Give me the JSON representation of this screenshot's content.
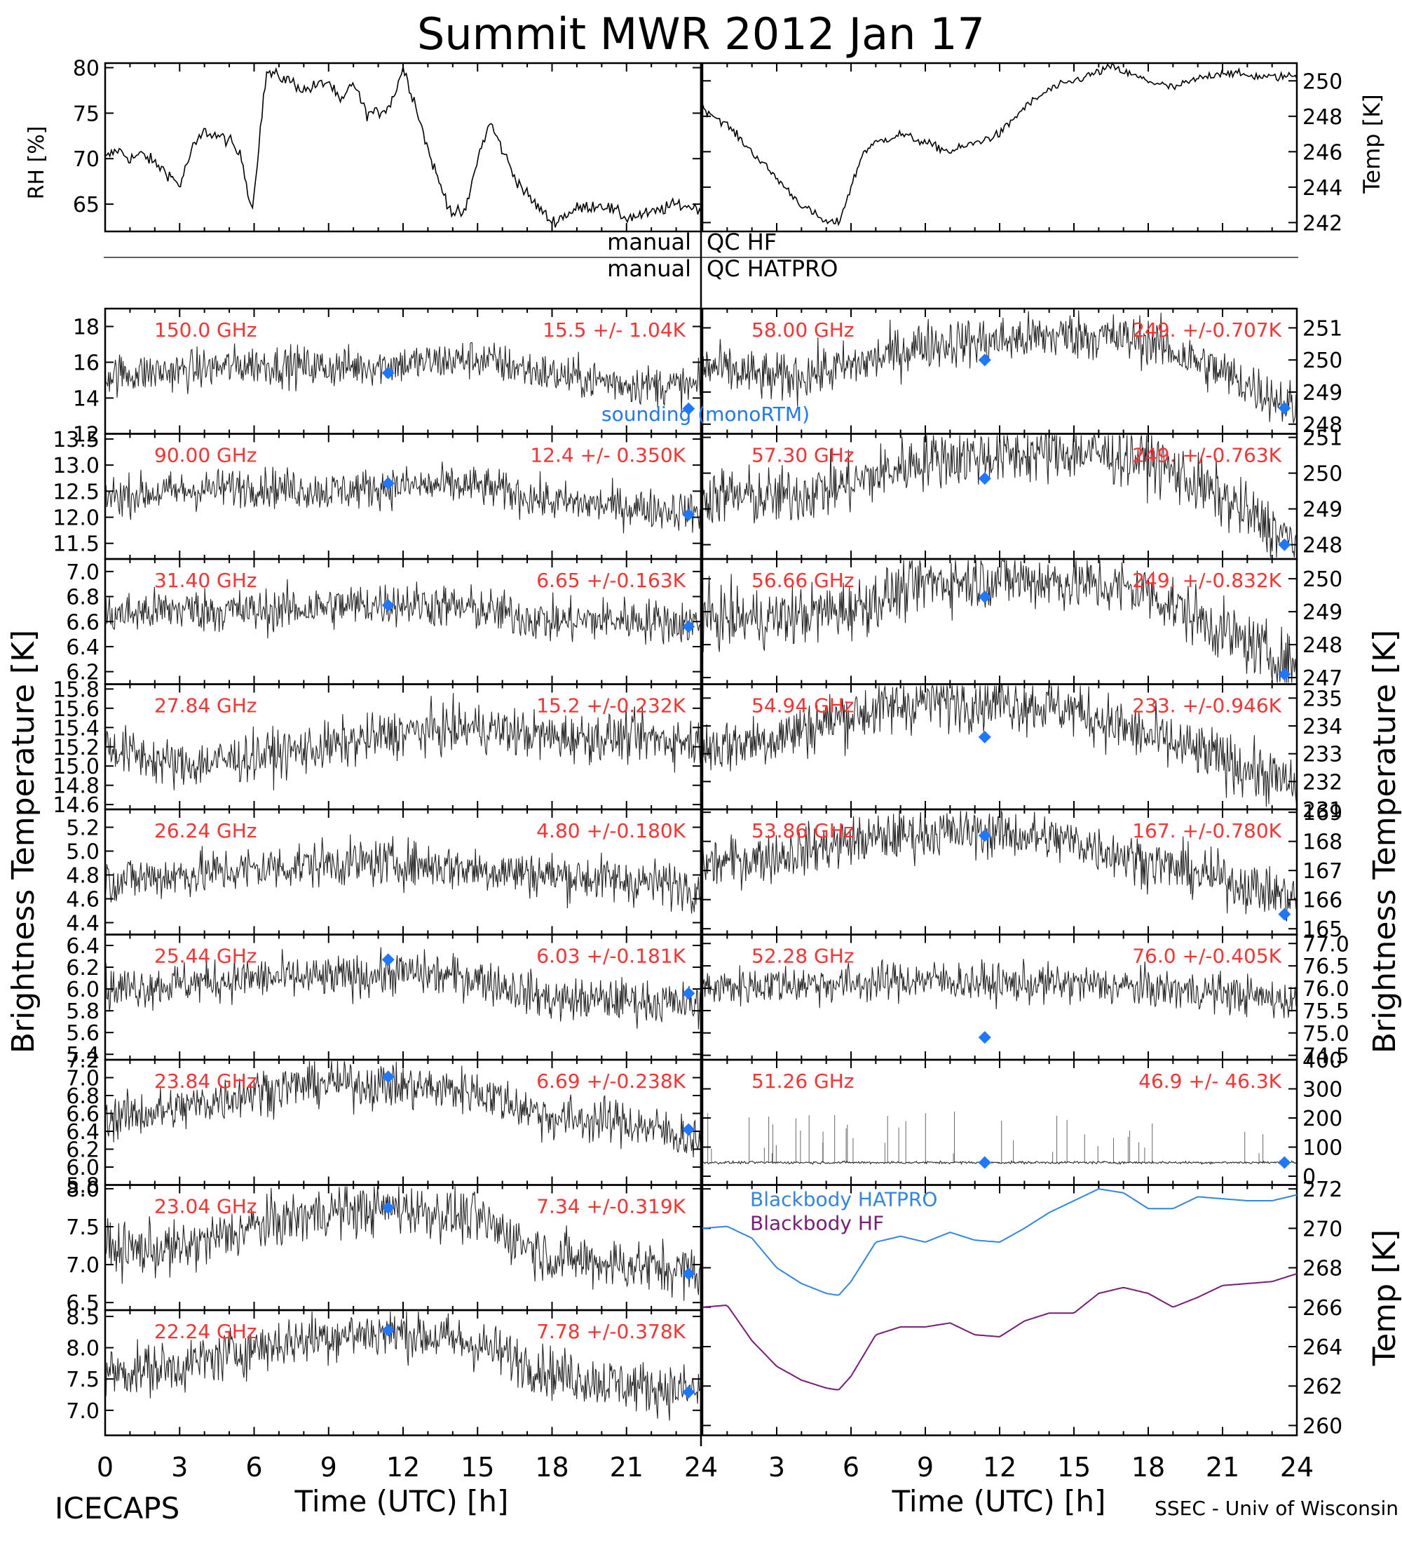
{
  "title": "Summit MWR 2012 Jan 17",
  "footer": {
    "left": "ICECAPS",
    "right": "SSEC - Univ of Wisconsin",
    "xlabel_left": "Time (UTC) [h]",
    "xlabel_right": "Time (UTC) [h]"
  },
  "axis_labels": {
    "rh": "RH [%]",
    "temp_top": "Temp [K]",
    "bt_left": "Brightness Temperature [K]",
    "bt_right": "Brightness Temperature [K]",
    "temp_bottom": "Temp [K]"
  },
  "qc_lines": {
    "hf_left": "manual",
    "hf_right": "QC HF",
    "hatpro_left": "manual",
    "hatpro_right": "QC HATPRO"
  },
  "legends": {
    "sounding": "sounding (monoRTM)",
    "bb_hatpro": "Blackbody HATPRO",
    "bb_hf": "Blackbody HF"
  },
  "colors": {
    "data": "#000000",
    "label": "#ff3030",
    "sounding": "#1e78ff",
    "bb_hatpro": "#2f86e8",
    "bb_hf": "#7a1a7a"
  },
  "chart_data": {
    "type": "line",
    "x_ticks": [
      "0",
      "3",
      "6",
      "9",
      "12",
      "15",
      "18",
      "21",
      "24"
    ],
    "xlim": [
      0,
      24
    ],
    "meteo": {
      "rh": {
        "ylim": [
          62,
          80.5
        ],
        "ticks": [
          "65",
          "70",
          "75",
          "80"
        ],
        "tick_values": [
          65,
          70,
          75,
          80
        ],
        "x": [
          0,
          0.5,
          1,
          1.5,
          2,
          2.5,
          3,
          3.5,
          4,
          4.5,
          5,
          5.5,
          5.9,
          6,
          6.2,
          6.5,
          7,
          7.5,
          8,
          8.5,
          9,
          9.5,
          10,
          10.5,
          11,
          11.5,
          12,
          12.5,
          13,
          13.5,
          14,
          14.5,
          15,
          15.5,
          16,
          16.5,
          17,
          17.5,
          18,
          19,
          20,
          21,
          22,
          23,
          24
        ],
        "y": [
          70,
          71,
          70,
          70.5,
          69.5,
          68.5,
          67,
          71,
          73,
          72.5,
          72,
          70,
          64.5,
          66,
          72,
          79.5,
          79,
          78.5,
          77.5,
          78,
          78.5,
          76,
          78.5,
          75,
          75,
          76,
          80,
          76,
          71,
          67,
          64,
          64,
          70,
          74,
          71,
          68,
          66,
          64.5,
          63,
          64.5,
          65,
          63.5,
          64,
          65,
          64.5
        ]
      },
      "temp": {
        "ylim": [
          241.5,
          251
        ],
        "ticks": [
          "242",
          "244",
          "246",
          "248",
          "250"
        ],
        "tick_values": [
          242,
          244,
          246,
          248,
          250
        ],
        "x": [
          0,
          0.5,
          1,
          2,
          3,
          4,
          4.5,
          5,
          5.5,
          6,
          6.5,
          7,
          8,
          9,
          10,
          11,
          12,
          13,
          14,
          15,
          16,
          16.5,
          17,
          18,
          19,
          20,
          21,
          22,
          23,
          24
        ],
        "y": [
          248.5,
          248,
          247.5,
          246,
          244.5,
          243,
          242.5,
          242,
          242,
          244,
          246,
          246.5,
          247,
          246.5,
          246,
          246.5,
          247,
          248.5,
          249.5,
          250,
          250.5,
          250.8,
          250.5,
          250,
          249.6,
          250.1,
          250.5,
          250.3,
          250.2,
          250.3
        ]
      }
    },
    "channels_left": [
      {
        "freq": "150.0 GHz",
        "stat": "15.5 +/- 1.04K",
        "ylim": [
          12,
          19
        ],
        "ticks": [
          "12",
          "14",
          "16",
          "18"
        ],
        "tick_values": [
          12,
          14,
          16,
          18
        ],
        "mean": 15.5,
        "noise": 1.04,
        "trend": [
          15.3,
          15.5,
          15.9,
          15.7,
          15.9,
          16.2,
          15.3,
          14.8,
          14.6
        ],
        "sound": [
          15.4,
          13.4
        ]
      },
      {
        "freq": "90.00 GHz",
        "stat": "12.4 +/- 0.350K",
        "ylim": [
          11.2,
          13.6
        ],
        "ticks": [
          "11.5",
          "12.0",
          "12.5",
          "13.0",
          "13.5"
        ],
        "tick_values": [
          11.5,
          12.0,
          12.5,
          13.0,
          13.5
        ],
        "mean": 12.4,
        "noise": 0.35,
        "trend": [
          12.4,
          12.5,
          12.6,
          12.5,
          12.6,
          12.6,
          12.3,
          12.2,
          12.1
        ],
        "sound": [
          12.65,
          12.05
        ]
      },
      {
        "freq": "31.40 GHz",
        "stat": "6.65 +/-0.163K",
        "ylim": [
          6.1,
          7.1
        ],
        "ticks": [
          "6.2",
          "6.4",
          "6.6",
          "6.8",
          "7.0"
        ],
        "tick_values": [
          6.2,
          6.4,
          6.6,
          6.8,
          7.0
        ],
        "mean": 6.65,
        "noise": 0.163,
        "trend": [
          6.65,
          6.7,
          6.68,
          6.72,
          6.75,
          6.7,
          6.6,
          6.62,
          6.58
        ],
        "sound": [
          6.73,
          6.56
        ]
      },
      {
        "freq": "27.84 GHz",
        "stat": "15.2 +/-0.232K",
        "ylim": [
          14.55,
          15.85
        ],
        "ticks": [
          "14.6",
          "14.8",
          "15.0",
          "15.2",
          "15.4",
          "15.6",
          "15.8"
        ],
        "tick_values": [
          14.6,
          14.8,
          15.0,
          15.2,
          15.4,
          15.6,
          15.8
        ],
        "mean": 15.2,
        "noise": 0.232,
        "trend": [
          15.2,
          15.0,
          15.1,
          15.2,
          15.35,
          15.4,
          15.3,
          15.3,
          15.25
        ],
        "sound": []
      },
      {
        "freq": "26.24 GHz",
        "stat": "4.80 +/-0.180K",
        "ylim": [
          4.3,
          5.35
        ],
        "ticks": [
          "4.4",
          "4.6",
          "4.8",
          "5.0",
          "5.2"
        ],
        "tick_values": [
          4.4,
          4.6,
          4.8,
          5.0,
          5.2
        ],
        "mean": 4.8,
        "noise": 0.18,
        "trend": [
          4.75,
          4.8,
          4.85,
          4.9,
          4.9,
          4.85,
          4.8,
          4.75,
          4.7
        ],
        "sound": []
      },
      {
        "freq": "25.44 GHz",
        "stat": "6.03 +/-0.181K",
        "ylim": [
          5.35,
          6.5
        ],
        "ticks": [
          "5.4",
          "5.6",
          "5.8",
          "6.0",
          "6.2",
          "6.4"
        ],
        "tick_values": [
          5.4,
          5.6,
          5.8,
          6.0,
          6.2,
          6.4
        ],
        "mean": 6.03,
        "noise": 0.181,
        "trend": [
          6.0,
          6.05,
          6.1,
          6.1,
          6.15,
          6.1,
          5.9,
          5.9,
          5.85
        ],
        "sound": [
          6.27,
          5.96
        ]
      },
      {
        "freq": "23.84 GHz",
        "stat": "6.69 +/-0.238K",
        "ylim": [
          5.8,
          7.2
        ],
        "ticks": [
          "5.8",
          "6.0",
          "6.2",
          "6.4",
          "6.6",
          "6.8",
          "7.0",
          "7.2"
        ],
        "tick_values": [
          5.8,
          6.0,
          6.2,
          6.4,
          6.6,
          6.8,
          7.0,
          7.2
        ],
        "mean": 6.69,
        "noise": 0.238,
        "trend": [
          6.55,
          6.65,
          6.85,
          6.95,
          6.9,
          6.85,
          6.55,
          6.5,
          6.3
        ],
        "sound": [
          7.01,
          6.42
        ]
      },
      {
        "freq": "23.04 GHz",
        "stat": "7.34 +/-0.319K",
        "ylim": [
          6.4,
          8.05
        ],
        "ticks": [
          "6.5",
          "7.0",
          "7.5",
          "8.0"
        ],
        "tick_values": [
          6.5,
          7.0,
          7.5,
          8.0
        ],
        "mean": 7.34,
        "noise": 0.319,
        "trend": [
          7.2,
          7.2,
          7.5,
          7.7,
          7.75,
          7.6,
          7.1,
          7.0,
          6.9
        ],
        "sound": [
          7.75,
          6.88
        ]
      },
      {
        "freq": "22.24 GHz",
        "stat": "7.78 +/-0.378K",
        "ylim": [
          6.6,
          8.6
        ],
        "ticks": [
          "7.0",
          "7.5",
          "8.0",
          "8.5"
        ],
        "tick_values": [
          7.0,
          7.5,
          8.0,
          8.5
        ],
        "mean": 7.78,
        "noise": 0.378,
        "trend": [
          7.6,
          7.7,
          8.0,
          8.2,
          8.25,
          8.05,
          7.6,
          7.4,
          7.3
        ],
        "sound": [
          8.28,
          7.29
        ]
      }
    ],
    "channels_right": [
      {
        "freq": "58.00 GHz",
        "stat": "249. +/-0.707K",
        "ylim": [
          247.7,
          251.6
        ],
        "ticks": [
          "248",
          "249",
          "250",
          "251"
        ],
        "tick_values": [
          248,
          249,
          250,
          251
        ],
        "mean": 249.5,
        "noise": 0.707,
        "trend": [
          249.8,
          249.4,
          249.8,
          250.5,
          250.6,
          250.8,
          250.6,
          249.6,
          248.5
        ],
        "sound": [
          250.0,
          248.5
        ]
      },
      {
        "freq": "57.30 GHz",
        "stat": "249. +/-0.763K",
        "ylim": [
          247.6,
          251.1
        ],
        "ticks": [
          "248",
          "249",
          "250",
          "251"
        ],
        "tick_values": [
          248,
          249,
          250,
          251
        ],
        "mean": 249.5,
        "noise": 0.763,
        "trend": [
          249.4,
          249.3,
          249.7,
          250.4,
          250.5,
          250.6,
          250.4,
          249.3,
          248.0
        ],
        "sound": [
          249.85,
          248.0
        ]
      },
      {
        "freq": "56.66 GHz",
        "stat": "249. +/-0.832K",
        "ylim": [
          246.8,
          250.6
        ],
        "ticks": [
          "247",
          "248",
          "249",
          "250"
        ],
        "tick_values": [
          247,
          248,
          249,
          250
        ],
        "mean": 248.8,
        "noise": 0.832,
        "trend": [
          248.8,
          248.8,
          249.1,
          249.9,
          250.0,
          249.9,
          249.6,
          248.4,
          247.3
        ],
        "sound": [
          249.45,
          247.1
        ]
      },
      {
        "freq": "54.94 GHz",
        "stat": "233. +/-0.946K",
        "ylim": [
          231,
          235.5
        ],
        "ticks": [
          "231",
          "232",
          "233",
          "234",
          "235"
        ],
        "tick_values": [
          231,
          232,
          233,
          234,
          235
        ],
        "mean": 233.5,
        "noise": 0.946,
        "trend": [
          233.2,
          233.6,
          234.4,
          234.9,
          234.9,
          234.6,
          233.6,
          232.8,
          231.8
        ],
        "sound": [
          233.6
        ]
      },
      {
        "freq": "53.86 GHz",
        "stat": "167. +/-0.780K",
        "ylim": [
          164.8,
          169.1
        ],
        "ticks": [
          "165",
          "166",
          "167",
          "168",
          "169"
        ],
        "tick_values": [
          165,
          166,
          167,
          168,
          169
        ],
        "mean": 167.2,
        "noise": 0.78,
        "trend": [
          167.2,
          167.5,
          168.0,
          168.3,
          168.3,
          168.0,
          167.3,
          166.7,
          166.0
        ],
        "sound": [
          168.2,
          165.5
        ]
      },
      {
        "freq": "52.28 GHz",
        "stat": "76.0 +/-0.405K",
        "ylim": [
          74.4,
          77.2
        ],
        "ticks": [
          "74.5",
          "75.0",
          "75.5",
          "76.0",
          "76.5",
          "77.0"
        ],
        "tick_values": [
          74.5,
          75.0,
          75.5,
          76.0,
          76.5,
          77.0
        ],
        "mean": 76.0,
        "noise": 0.405,
        "trend": [
          76.0,
          76.1,
          76.1,
          76.2,
          76.1,
          76.1,
          76.0,
          75.9,
          75.7
        ],
        "sound": [
          74.9
        ]
      },
      {
        "freq": "51.26 GHz",
        "stat": "46.9 +/- 46.3K",
        "ylim": [
          -30,
          400
        ],
        "ticks": [
          "0",
          "100",
          "200",
          "300",
          "400"
        ],
        "tick_values": [
          0,
          100,
          200,
          300,
          400
        ],
        "mean": 46.9,
        "noise": 4,
        "trend": [
          47,
          47,
          47,
          47,
          47,
          47,
          47,
          47,
          47
        ],
        "sound": [
          47,
          47
        ],
        "spiky": true
      }
    ],
    "blackbody": {
      "ylim": [
        259.5,
        272.2
      ],
      "ticks": [
        "260",
        "262",
        "264",
        "266",
        "268",
        "270",
        "272"
      ],
      "tick_values": [
        260,
        262,
        264,
        266,
        268,
        270,
        272
      ],
      "x": [
        0,
        1,
        2,
        3,
        4,
        5,
        5.5,
        6,
        7,
        8,
        9,
        10,
        11,
        12,
        13,
        14,
        15,
        16,
        17,
        18,
        19,
        20,
        21,
        22,
        23,
        24
      ],
      "hatpro": [
        270.0,
        270.1,
        269.5,
        268.0,
        267.2,
        266.7,
        266.6,
        267.3,
        269.3,
        269.6,
        269.3,
        269.8,
        269.4,
        269.3,
        270.0,
        270.8,
        271.4,
        272.0,
        271.8,
        271.0,
        271.0,
        271.6,
        271.5,
        271.4,
        271.4,
        271.7
      ],
      "hf": [
        266.0,
        266.1,
        264.3,
        263.0,
        262.3,
        261.9,
        261.8,
        262.5,
        264.6,
        265.0,
        265.0,
        265.2,
        264.6,
        264.5,
        265.3,
        265.7,
        265.7,
        266.7,
        267.0,
        266.7,
        266.0,
        266.5,
        267.1,
        267.2,
        267.3,
        267.7
      ]
    }
  }
}
